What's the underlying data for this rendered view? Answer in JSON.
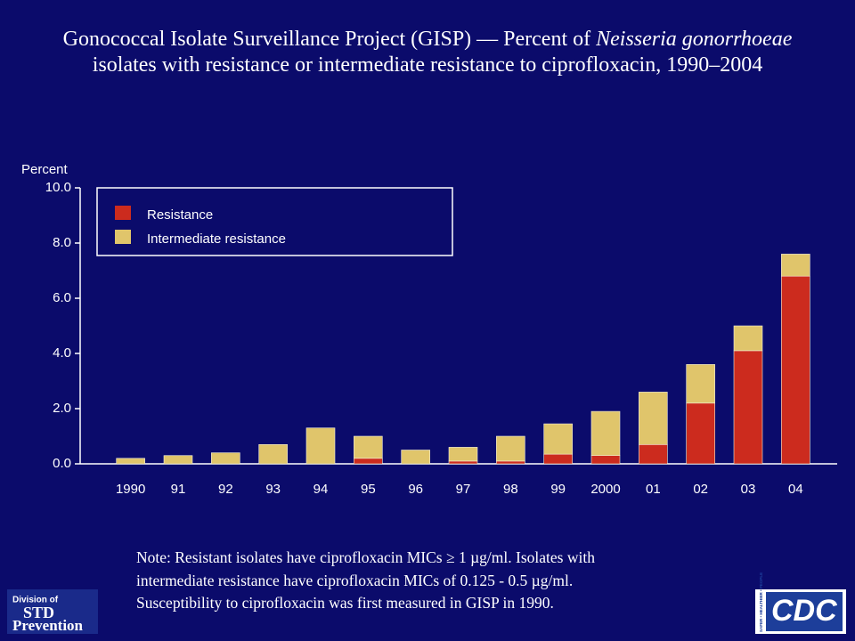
{
  "chart_data": {
    "type": "stacked_bar",
    "title": [
      "Gonococcal Isolate Surveillance Project (GISP) — Percent of ",
      "Neisseria gonorrhoeae",
      " isolates with resistance or intermediate resistance to ciprofloxacin, 1990–2004"
    ],
    "y_label": "Percent",
    "categories": [
      "1990",
      "91",
      "92",
      "93",
      "94",
      "95",
      "96",
      "97",
      "98",
      "99",
      "2000",
      "01",
      "02",
      "03",
      "04"
    ],
    "series": [
      {
        "name": "Resistance",
        "color": "#cc2b1e",
        "values": [
          0,
          0,
          0,
          0,
          0,
          0.2,
          0,
          0.1,
          0.1,
          0.35,
          0.3,
          0.7,
          2.2,
          4.1,
          6.8
        ]
      },
      {
        "name": "Intermediate resistance",
        "color": "#e0c56b",
        "values": [
          0.2,
          0.3,
          0.4,
          0.7,
          1.3,
          0.8,
          0.5,
          0.5,
          0.9,
          1.1,
          1.6,
          1.9,
          1.4,
          0.9,
          0.8
        ]
      }
    ],
    "ylim": [
      0,
      10
    ],
    "yticks": [
      {
        "value": 0,
        "label": "0.0"
      },
      {
        "value": 2,
        "label": "2.0"
      },
      {
        "value": 4,
        "label": "4.0"
      },
      {
        "value": 6,
        "label": "6.0"
      },
      {
        "value": 8,
        "label": "8.0"
      },
      {
        "value": 10,
        "label": "10.0"
      }
    ],
    "legend": "upper left",
    "note": [
      "Note: Resistant isolates have ciprofloxacin MICs ≥ 1 µg/ml. Isolates with",
      "intermediate resistance have ciprofloxacin MICs of 0.125 - 0.5 µg/ml.",
      "Susceptibility to ciprofloxacin was first measured in GISP in 1990."
    ],
    "logos": {
      "std": [
        "Division of",
        "STD",
        "Prevention"
      ],
      "cdc": "CDC",
      "cdc_tagline": "SAFER • HEALTHIER • PEOPLE"
    }
  }
}
